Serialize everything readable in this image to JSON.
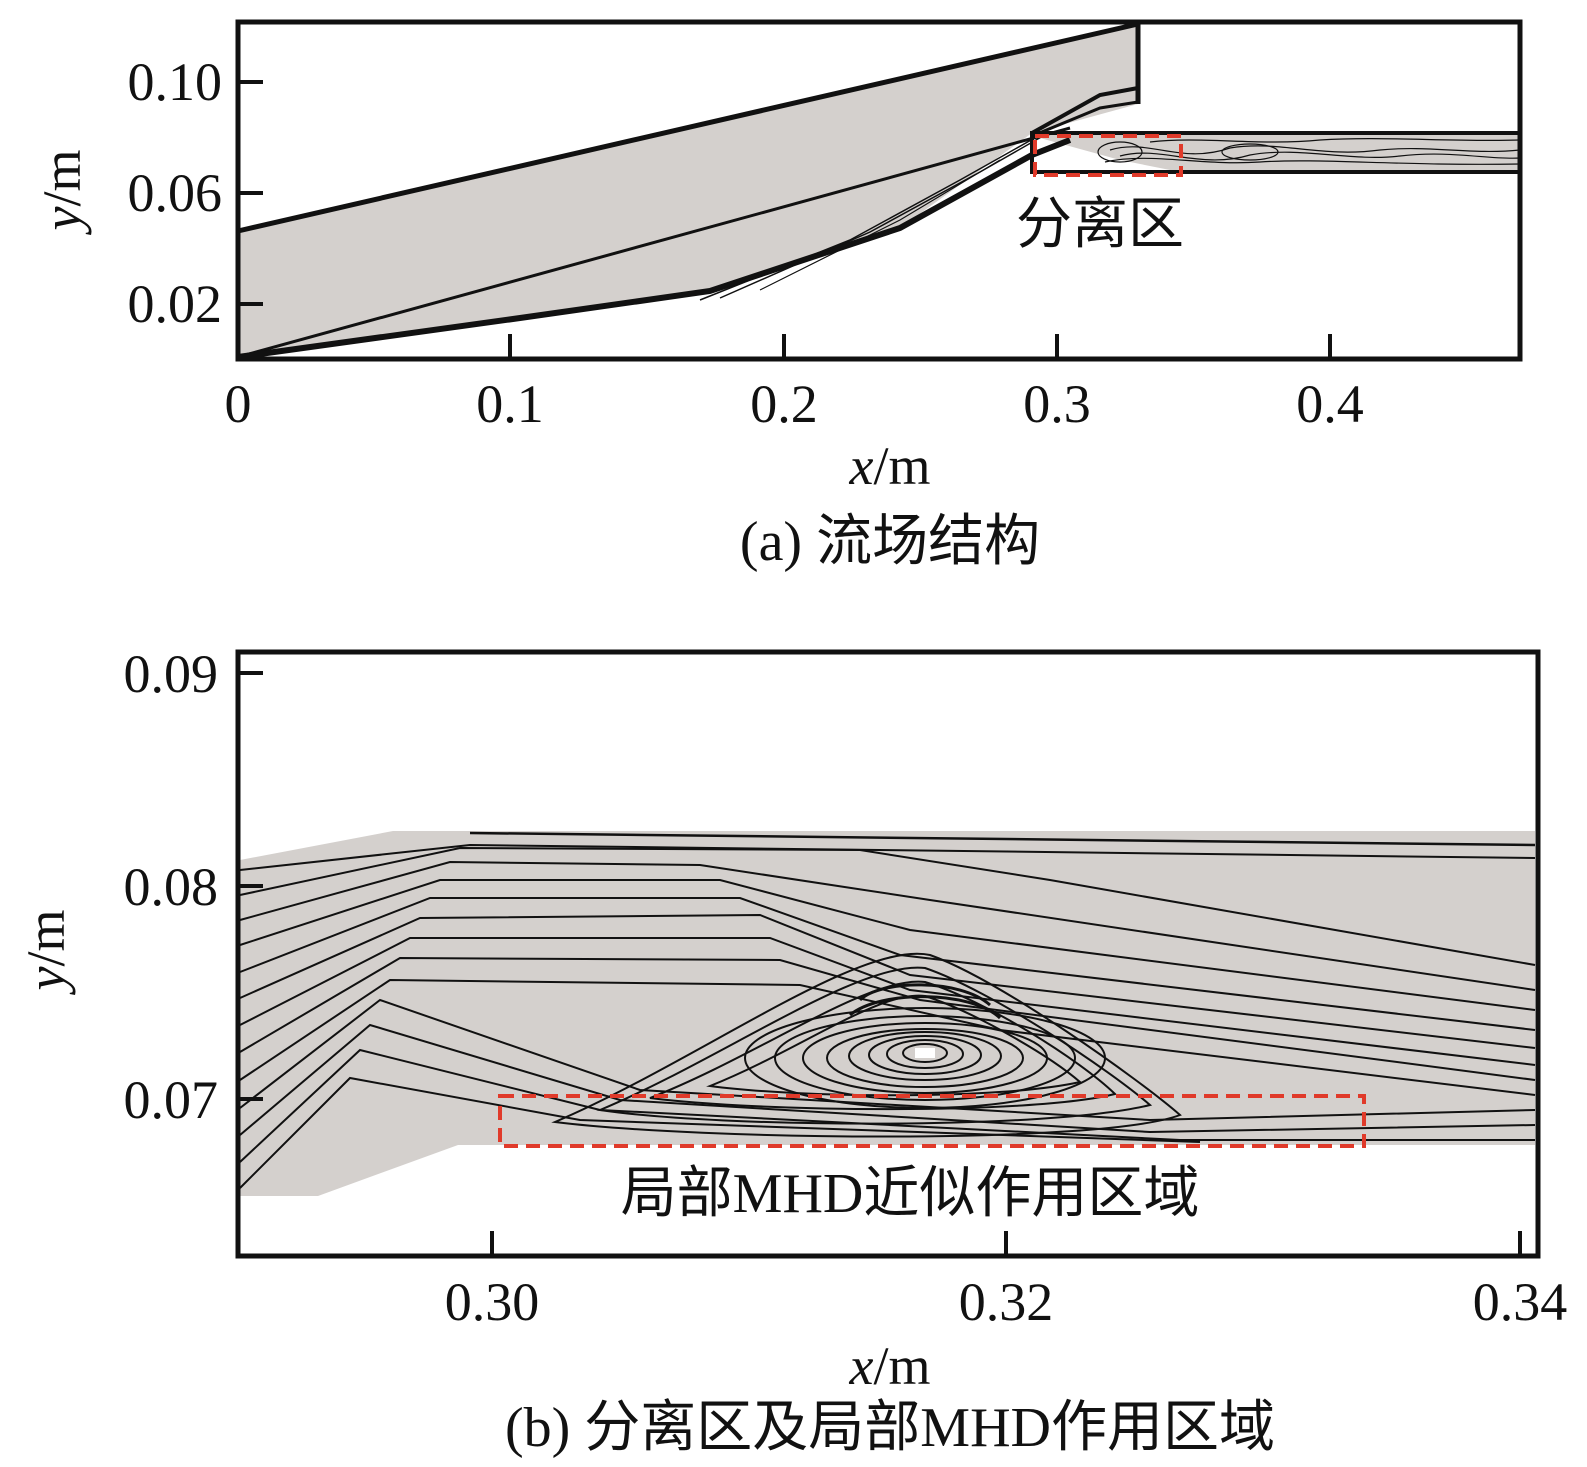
{
  "colors": {
    "flow_fill": "#d4d0cd",
    "line": "#111111",
    "highlight_box": "#e03a2a",
    "background": "#ffffff"
  },
  "panel_a": {
    "caption": "(a) 流场结构",
    "xlabel_var": "x",
    "xlabel_unit": "/m",
    "ylabel_var": "y",
    "ylabel_unit": "/m",
    "x_ticks": [
      "0",
      "0.1",
      "0.2",
      "0.3",
      "0.4"
    ],
    "y_ticks": [
      "0.10",
      "0.06",
      "0.02"
    ],
    "annotation": "分离区"
  },
  "panel_b": {
    "caption": "(b) 分离区及局部MHD作用区域",
    "xlabel_var": "x",
    "xlabel_unit": "/m",
    "ylabel_var": "y",
    "ylabel_unit": "/m",
    "x_ticks": [
      "0.30",
      "0.32",
      "0.34"
    ],
    "y_ticks": [
      "0.09",
      "0.08",
      "0.07"
    ],
    "annotation": "局部MHD近似作用区域"
  }
}
